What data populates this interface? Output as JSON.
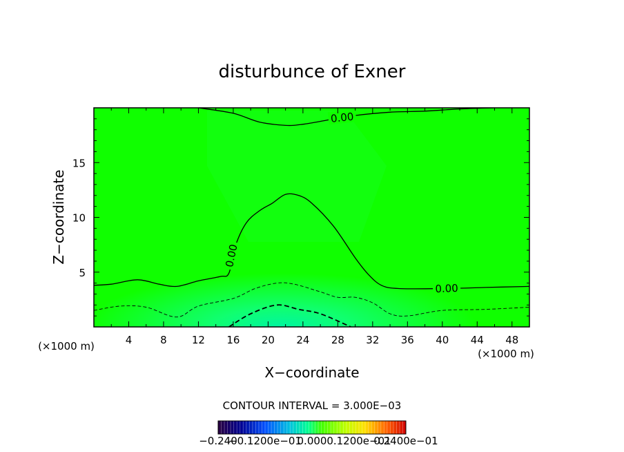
{
  "chart_data": {
    "type": "contour",
    "title": "disturbunce of Exner",
    "xlabel": "X−coordinate",
    "ylabel": "Z−coordinate",
    "x_unit_left": "(×1000 m)",
    "x_unit_right": "(×1000 m)",
    "xlim": [
      0,
      50
    ],
    "ylim": [
      0,
      20
    ],
    "x_ticks": [
      4,
      8,
      12,
      16,
      20,
      24,
      28,
      32,
      36,
      40,
      44,
      48
    ],
    "y_ticks": [
      5,
      10,
      15
    ],
    "contour_interval_text": "CONTOUR INTERVAL = 3.000E−03",
    "contours": [
      {
        "level_label": "0.00",
        "style": "solid",
        "points": [
          [
            0,
            3.8
          ],
          [
            2,
            3.9
          ],
          [
            5,
            4.3
          ],
          [
            7.5,
            3.9
          ],
          [
            9.5,
            3.7
          ],
          [
            12,
            4.2
          ],
          [
            14.5,
            4.6
          ],
          [
            15.5,
            4.9
          ],
          [
            16.3,
            7.5
          ],
          [
            17.5,
            9.5
          ],
          [
            19,
            10.6
          ],
          [
            20.5,
            11.3
          ],
          [
            22,
            12.1
          ],
          [
            23.5,
            12.0
          ],
          [
            25,
            11.3
          ],
          [
            27.5,
            9.2
          ],
          [
            30,
            6.3
          ],
          [
            31.5,
            4.8
          ],
          [
            33,
            3.8
          ],
          [
            35,
            3.5
          ],
          [
            40,
            3.5
          ],
          [
            45,
            3.6
          ],
          [
            50,
            3.7
          ]
        ]
      },
      {
        "level_label": "0.00",
        "style": "solid",
        "points": [
          [
            12,
            20
          ],
          [
            16,
            19.5
          ],
          [
            19,
            18.7
          ],
          [
            22,
            18.4
          ],
          [
            24,
            18.5
          ],
          [
            27,
            18.9
          ],
          [
            30,
            19.3
          ],
          [
            34,
            19.6
          ],
          [
            38,
            19.7
          ],
          [
            42,
            19.9
          ],
          [
            46,
            20
          ]
        ]
      },
      {
        "level_label": "",
        "style": "dashed",
        "points": [
          [
            0,
            1.5
          ],
          [
            3,
            1.9
          ],
          [
            6,
            1.8
          ],
          [
            9.5,
            0.9
          ],
          [
            12,
            1.9
          ],
          [
            16,
            2.6
          ],
          [
            18.5,
            3.5
          ],
          [
            21,
            4.0
          ],
          [
            23,
            3.9
          ],
          [
            26,
            3.2
          ],
          [
            28,
            2.7
          ],
          [
            30,
            2.7
          ],
          [
            32,
            2.2
          ],
          [
            34,
            1.2
          ],
          [
            36,
            1.0
          ],
          [
            40,
            1.5
          ],
          [
            45,
            1.6
          ],
          [
            50,
            1.8
          ]
        ]
      },
      {
        "level_label": "",
        "style": "dashed-bold",
        "points": [
          [
            15.5,
            0
          ],
          [
            18,
            1.2
          ],
          [
            21,
            2.0
          ],
          [
            23.5,
            1.6
          ],
          [
            26,
            1.2
          ],
          [
            29.5,
            0
          ]
        ]
      }
    ],
    "colorbar": {
      "tick_labels": [
        "−0.240",
        "−0.1200e−01",
        "0.000",
        "0.1200e−01",
        "0.2400e−01"
      ],
      "colors": [
        "#2a0040",
        "#0000a0",
        "#0060ff",
        "#00c8d0",
        "#00ff80",
        "#40ff00",
        "#c8ff00",
        "#ffd000",
        "#ff6000",
        "#d00000"
      ]
    }
  }
}
